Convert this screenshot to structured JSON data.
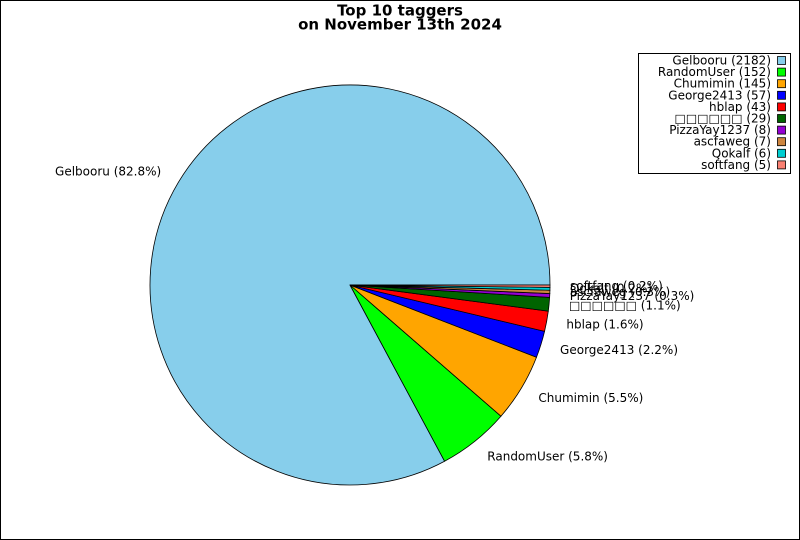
{
  "chart_data": {
    "type": "pie",
    "title": "Top 10 taggers",
    "subtitle": "on November 13th 2024",
    "categories": [
      "Gelbooru",
      "RandomUser",
      "Chumimin",
      "George2413",
      "hblap",
      "□□□□□□",
      "PizzaYay1237",
      "ascfaweg",
      "Qokalf",
      "softfang"
    ],
    "values": [
      2182,
      152,
      145,
      57,
      43,
      29,
      8,
      7,
      6,
      5
    ],
    "value_labels": [
      "Gelbooru (82.8%)",
      "RandomUser (5.8%)",
      "Chumimin (5.5%)",
      "George2413 (2.2%)",
      "hblap (1.6%)",
      "□□□□□□ (1.1%)",
      "PizzaYay1237 (0.3%)",
      "ascfaweg (0.3%)",
      "Qokalf (0.2%)",
      "softfang (0.2%)"
    ],
    "legend_labels": [
      "Gelbooru (2182)",
      "RandomUser (152)",
      "Chumimin (145)",
      "George2413 (57)",
      "hblap (43)",
      "□□□□□□ (29)",
      "PizzaYay1237 (8)",
      "ascfaweg (7)",
      "Qokalf (6)",
      "softfang (5)"
    ],
    "colors": [
      "#87ceeb",
      "#00ff00",
      "#ffa500",
      "#0000ff",
      "#ff0000",
      "#006400",
      "#9400d3",
      "#cd853f",
      "#00ced1",
      "#fa8072"
    ],
    "legend": "upper right"
  }
}
